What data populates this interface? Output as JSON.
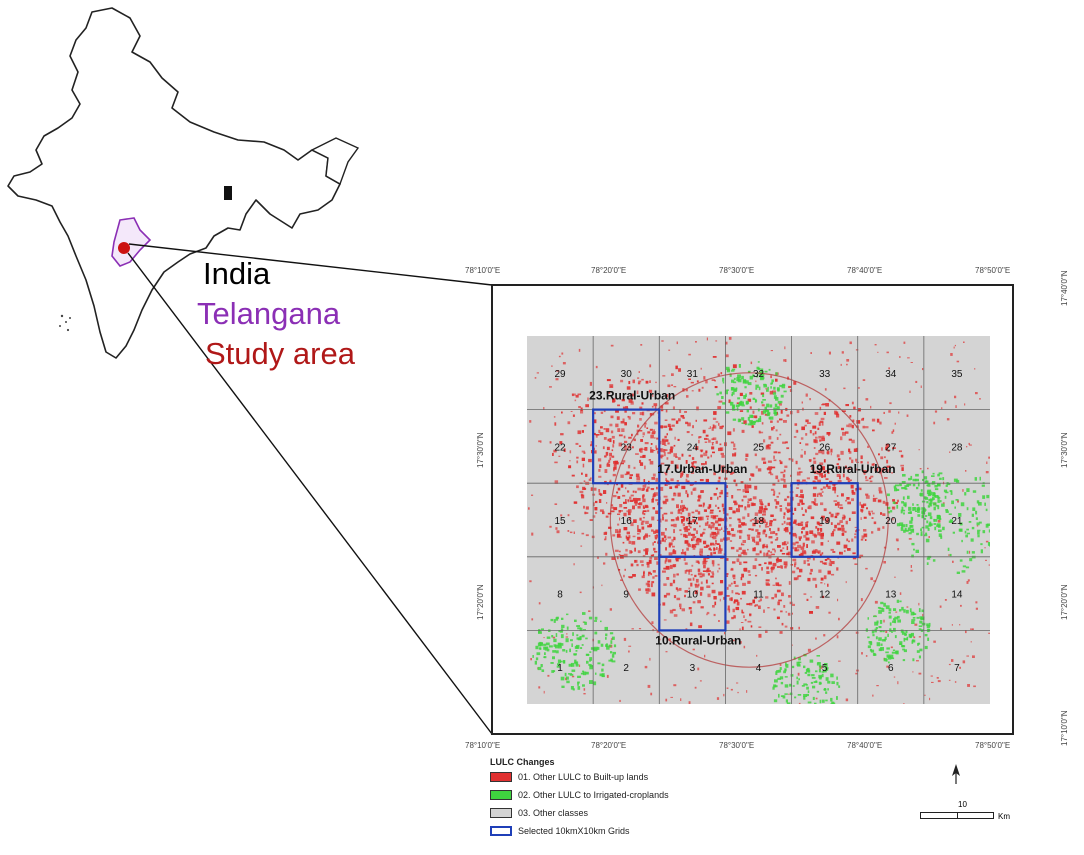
{
  "labels": {
    "india": "India",
    "telangana": "Telangana",
    "study_area": "Study area"
  },
  "colors": {
    "india_outline": "#222222",
    "telangana": "#8b2fb5",
    "study_area": "#cc1111",
    "built_up": "#e03030",
    "croplands": "#3fd43f",
    "other": "#d4d4d4",
    "grid_select": "#1f3fb8"
  },
  "coords": {
    "top": [
      "78°10'0\"E",
      "78°20'0\"E",
      "78°30'0\"E",
      "78°40'0\"E",
      "78°50'0\"E"
    ],
    "bottom": [
      "78°10'0\"E",
      "78°20'0\"E",
      "78°30'0\"E",
      "78°40'0\"E",
      "78°50'0\"E"
    ],
    "left": [
      "17°30'0\"N",
      "17°20'0\"N"
    ],
    "right": [
      "17°40'0\"N",
      "17°30'0\"N",
      "17°20'0\"N",
      "17°10'0\"N"
    ]
  },
  "grid": {
    "rows": [
      [
        "29",
        "30",
        "31",
        "32",
        "33",
        "34",
        "35"
      ],
      [
        "22",
        "23",
        "24",
        "25",
        "26",
        "27",
        "28"
      ],
      [
        "15",
        "16",
        "17",
        "18",
        "19",
        "20",
        "21"
      ],
      [
        "8",
        "9",
        "10",
        "11",
        "12",
        "13",
        "14"
      ],
      [
        "1",
        "2",
        "3",
        "4",
        "5",
        "6",
        "7"
      ]
    ]
  },
  "selected_grids": [
    {
      "cell": "23",
      "label": "23.Rural-Urban"
    },
    {
      "cell": "17",
      "label": "17.Urban-Urban"
    },
    {
      "cell": "19",
      "label": "19.Rural-Urban"
    },
    {
      "cell": "10",
      "label": "10.Rural-Urban"
    }
  ],
  "legend": {
    "title": "LULC Changes",
    "items": [
      {
        "label": "01. Other LULC to Built-up lands",
        "color": "#e03030"
      },
      {
        "label": "02. Other LULC to Irrigated-croplands",
        "color": "#3fd43f"
      },
      {
        "label": "03. Other classes",
        "color": "#d4d4d4"
      },
      {
        "label": "Selected 10kmX10km Grids",
        "color": "#ffffff"
      }
    ]
  },
  "scale": {
    "value": "10",
    "unit": "Km"
  },
  "north_label": "N"
}
